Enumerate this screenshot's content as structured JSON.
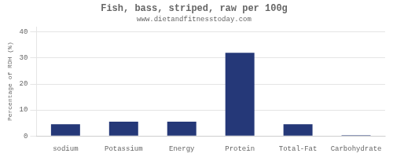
{
  "chart_data": {
    "type": "bar",
    "title": "Fish, bass, striped, raw per 100g",
    "subtitle": "www.dietandfitnesstoday.com",
    "categories": [
      "sodium",
      "Potassium",
      "Energy",
      "Protein",
      "Total-Fat",
      "Carbohydrate"
    ],
    "values": [
      4.5,
      5.5,
      5.5,
      32.0,
      4.5,
      0.3
    ],
    "color": "#253878",
    "ylabel": "Percentage of RDH (%)",
    "ylim": [
      0,
      42
    ],
    "yticks": [
      0,
      10,
      20,
      30,
      40
    ],
    "grid": true
  }
}
